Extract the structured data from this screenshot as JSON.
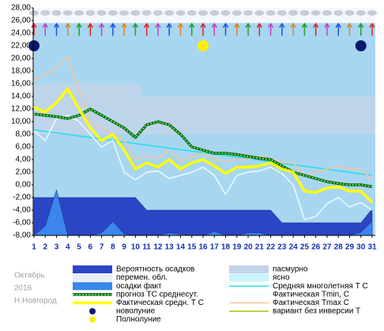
{
  "chart_data": {
    "type": "line",
    "x": [
      1,
      2,
      3,
      4,
      5,
      6,
      7,
      8,
      9,
      10,
      11,
      12,
      13,
      14,
      15,
      16,
      17,
      18,
      19,
      20,
      21,
      22,
      23,
      24,
      25,
      26,
      27,
      28,
      29,
      30,
      31
    ],
    "xlim": [
      1,
      31
    ],
    "xticks": [
      1,
      2,
      3,
      4,
      5,
      6,
      7,
      8,
      9,
      10,
      11,
      12,
      13,
      14,
      15,
      16,
      17,
      18,
      19,
      20,
      21,
      22,
      23,
      24,
      25,
      26,
      27,
      28,
      29,
      30,
      31
    ],
    "ylim": [
      -8,
      28
    ],
    "yticks": [
      {
        "value": -8,
        "label": "-8,00"
      },
      {
        "value": -6,
        "label": "-6,00"
      },
      {
        "value": -4,
        "label": "-4,00"
      },
      {
        "value": -2,
        "label": "-2,00"
      },
      {
        "value": 0,
        "label": "0,00"
      },
      {
        "value": 2,
        "label": "2,00"
      },
      {
        "value": 4,
        "label": "4,00"
      },
      {
        "value": 6,
        "label": "6,00"
      },
      {
        "value": 8,
        "label": "8,00"
      },
      {
        "value": 10,
        "label": "10,00"
      },
      {
        "value": 12,
        "label": "12,00"
      },
      {
        "value": 14,
        "label": "14,00"
      },
      {
        "value": 16,
        "label": "16,00"
      },
      {
        "value": 18,
        "label": "18,00"
      },
      {
        "value": 20,
        "label": "20,00"
      },
      {
        "value": 22,
        "label": "22,00"
      },
      {
        "value": 24,
        "label": "24,00"
      },
      {
        "value": 26,
        "label": "26,00"
      },
      {
        "value": 28,
        "label": "28,00"
      }
    ],
    "grid": false,
    "side_texts": [
      "Октябрь",
      "2016",
      "Н.Новгород"
    ],
    "series": [
      {
        "name": "Вероятность осадков",
        "kind": "area",
        "color": "#2a46c4",
        "values": [
          -2,
          -2,
          -2,
          -2,
          -2,
          -2,
          -2,
          -2,
          -2,
          -2,
          -4,
          -4,
          -4,
          -4,
          -4,
          -4,
          -4,
          -4,
          -4,
          -4,
          -4,
          -4,
          -6,
          -6,
          -6,
          -6,
          -6,
          -6,
          -6,
          -6,
          -3.8
        ]
      },
      {
        "name": "осадки факт",
        "kind": "area",
        "color": "#3a86ec",
        "values": [
          -8,
          -6.5,
          -0.8,
          -8,
          -8,
          -8,
          -7.6,
          -5.8,
          -7.8,
          -8,
          -8,
          -8,
          -7.6,
          -7.8,
          -8,
          -8,
          -7.4,
          -8,
          -8,
          -7.6,
          -7.6,
          -8,
          -8,
          -8,
          -8,
          -8,
          -8,
          -8,
          -8,
          -7.5,
          -5.8
        ]
      },
      {
        "name": "Средняя многолетняя Т С",
        "kind": "line",
        "color": "#22e0e6",
        "values": [
          8.7,
          8.46,
          8.22,
          7.98,
          7.74,
          7.5,
          7.26,
          7.02,
          6.78,
          6.54,
          6.3,
          6.06,
          5.82,
          5.58,
          5.34,
          5.1,
          4.86,
          4.62,
          4.38,
          4.14,
          3.9,
          3.66,
          3.42,
          3.18,
          2.94,
          2.7,
          2.46,
          2.22,
          1.98,
          1.74,
          1.5
        ]
      },
      {
        "name": "Фактическая Tmax С",
        "kind": "line",
        "color": "#f7c39e",
        "values": [
          16.5,
          17.5,
          18.5,
          20.3,
          15,
          10,
          9,
          8,
          7,
          4,
          4.5,
          4.2,
          5.5,
          3.8,
          4.5,
          5,
          4,
          3.8,
          4,
          4,
          4.5,
          4.2,
          3.5,
          3.5,
          1.5,
          2,
          2.5,
          3,
          2.5,
          2.5,
          0.8
        ]
      },
      {
        "name": "Фактическая Tmin, С",
        "kind": "line",
        "color": "#eafcff",
        "values": [
          8.5,
          7,
          10.5,
          11,
          10,
          8,
          6,
          7,
          2,
          0.8,
          2,
          2.2,
          1,
          1.5,
          2,
          2.8,
          1.5,
          -1.5,
          1.5,
          2,
          2.2,
          2.8,
          1.8,
          0,
          -5.5,
          -5,
          -3,
          -2,
          -3.5,
          -2.8,
          -4
        ]
      },
      {
        "name": "прогноз ТС среднесут.",
        "kind": "dotted",
        "color": "#0a6a0a",
        "values": [
          11.2,
          11,
          10.8,
          10.5,
          11,
          12,
          11,
          10,
          9,
          7.5,
          9.5,
          10,
          9.5,
          8,
          6,
          5.5,
          5,
          5,
          4.8,
          4.5,
          4.2,
          4,
          3,
          2,
          1.5,
          1,
          0.5,
          0.2,
          0,
          0,
          -0.3
        ]
      },
      {
        "name": "Фактическая средн. Т С",
        "kind": "thick",
        "color": "#ffff00",
        "values": [
          12.3,
          11.5,
          13,
          15.2,
          12,
          9,
          7,
          8,
          5.5,
          2.5,
          3.5,
          2.8,
          4,
          2.5,
          3.5,
          4,
          3,
          1.8,
          2.8,
          2.8,
          3,
          3.5,
          2.5,
          2,
          -1,
          -1.2,
          -0.5,
          -0.3,
          -1,
          -1,
          -2.8
        ]
      },
      {
        "name": "новолуние",
        "kind": "dot",
        "color": "#0a1a6a",
        "x": [
          1,
          30
        ],
        "values": [
          22,
          22
        ]
      },
      {
        "name": "Полнолуние",
        "kind": "dot",
        "color": "#ffee00",
        "x": [
          16
        ],
        "values": [
          22
        ]
      }
    ],
    "extra_legend": [
      {
        "name": "пасмурно",
        "color": "#c2d4e8"
      },
      {
        "name": "перемен. обл.",
        "color": "#e6eef8"
      },
      {
        "name": "ясно",
        "color": "#c8f6fa"
      },
      {
        "name": "вариант без инверсии Т",
        "color": "#a8c800"
      }
    ]
  }
}
